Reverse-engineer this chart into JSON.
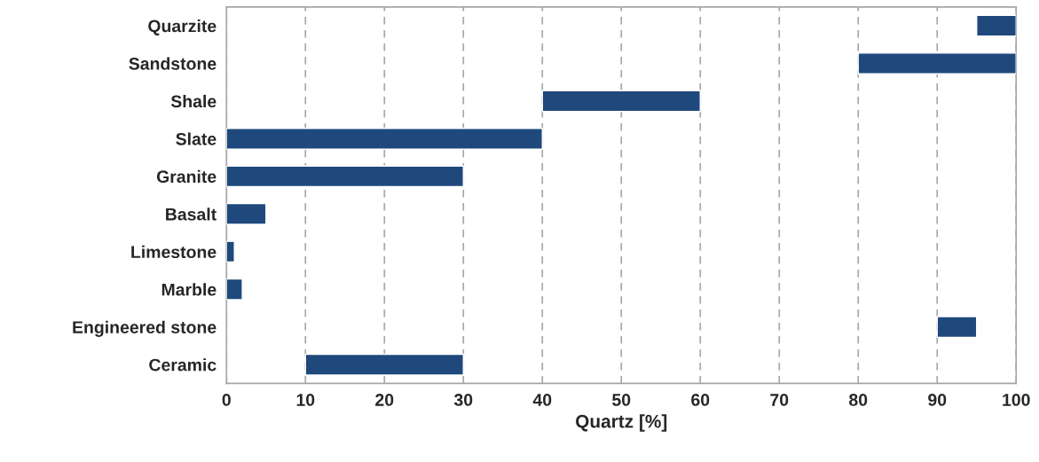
{
  "chart_data": {
    "type": "bar",
    "orientation": "horizontal",
    "xlabel": "Quartz [%]",
    "categories": [
      "Quarzite",
      "Sandstone",
      "Shale",
      "Slate",
      "Granite",
      "Basalt",
      "Limestone",
      "Marble",
      "Engineered stone",
      "Ceramic"
    ],
    "base": [
      95,
      80,
      40,
      0,
      0,
      0,
      0,
      0,
      90,
      10
    ],
    "values": [
      5,
      20,
      20,
      40,
      30,
      5,
      1,
      2,
      5,
      20
    ],
    "color": "#1f497d",
    "xlim": [
      0,
      100
    ],
    "xticks": [
      0,
      10,
      20,
      30,
      40,
      50,
      60,
      70,
      80,
      90,
      100
    ],
    "grid": "x",
    "legend": false
  }
}
